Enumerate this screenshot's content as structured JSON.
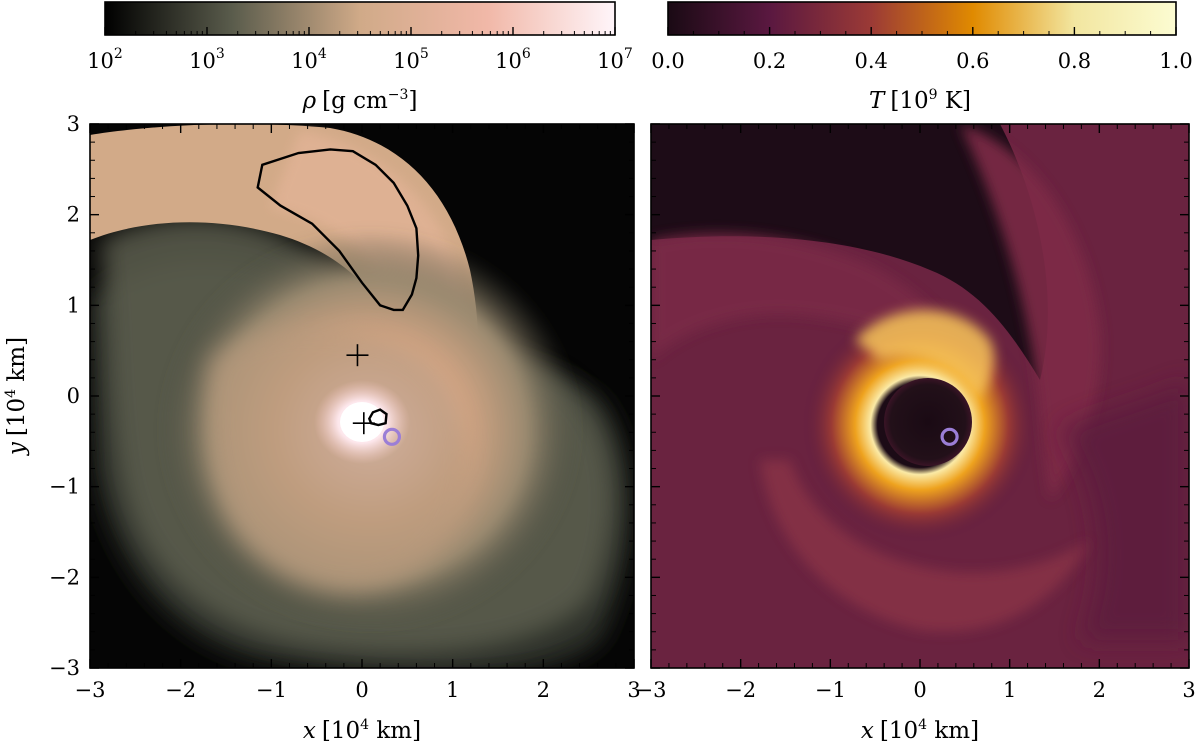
{
  "chart_data": [
    {
      "type": "heatmap",
      "panel": "left",
      "quantity": "density",
      "colorbar": {
        "label": {
          "symbol": "ρ",
          "unit": "[g cm",
          "unit_exp": "−3",
          "unit_close": "]"
        },
        "scale": "log",
        "range": [
          100,
          10000000
        ],
        "tick_labels": [
          {
            "base": "10",
            "exp": "2"
          },
          {
            "base": "10",
            "exp": "3"
          },
          {
            "base": "10",
            "exp": "4"
          },
          {
            "base": "10",
            "exp": "5"
          },
          {
            "base": "10",
            "exp": "6"
          },
          {
            "base": "10",
            "exp": "7"
          }
        ],
        "colors": [
          "#000000",
          "#5a5c4c",
          "#d0aa88",
          "#f1b8a8",
          "#fff5fa"
        ]
      },
      "xlim": [
        -3,
        3
      ],
      "ylim": [
        -3,
        3
      ],
      "x_ticks": [
        "−3",
        "−2",
        "−1",
        "0",
        "1",
        "2",
        "3"
      ],
      "y_ticks": [
        "3",
        "2",
        "1",
        "0",
        "−1",
        "−2",
        "−3"
      ],
      "xlabel": {
        "var": "x",
        "unit": "[10",
        "exp": "4",
        "unit_close": " km]"
      },
      "ylabel": {
        "var": "y",
        "unit": "[10",
        "exp": "4",
        "unit_close": " km]"
      },
      "markers": [
        {
          "type": "plus",
          "x": -0.05,
          "y": 0.45
        },
        {
          "type": "plus",
          "x": 0.02,
          "y": -0.3
        },
        {
          "type": "circle",
          "x": 0.33,
          "y": -0.45,
          "color": "#9b7ed6"
        }
      ],
      "contour_large": [
        [
          -1.15,
          2.3
        ],
        [
          -1.1,
          2.55
        ],
        [
          -0.7,
          2.68
        ],
        [
          -0.35,
          2.72
        ],
        [
          -0.1,
          2.7
        ],
        [
          0.15,
          2.55
        ],
        [
          0.35,
          2.35
        ],
        [
          0.5,
          2.1
        ],
        [
          0.6,
          1.85
        ],
        [
          0.62,
          1.55
        ],
        [
          0.6,
          1.3
        ],
        [
          0.55,
          1.12
        ],
        [
          0.45,
          0.95
        ],
        [
          0.35,
          0.95
        ],
        [
          0.2,
          1.0
        ],
        [
          0.0,
          1.25
        ],
        [
          -0.25,
          1.6
        ],
        [
          -0.55,
          1.9
        ],
        [
          -0.9,
          2.1
        ],
        [
          -1.15,
          2.3
        ]
      ],
      "contour_small": [
        [
          0.08,
          -0.25
        ],
        [
          0.12,
          -0.18
        ],
        [
          0.2,
          -0.15
        ],
        [
          0.27,
          -0.2
        ],
        [
          0.26,
          -0.3
        ],
        [
          0.18,
          -0.32
        ],
        [
          0.1,
          -0.3
        ],
        [
          0.08,
          -0.25
        ]
      ]
    },
    {
      "type": "heatmap",
      "panel": "right",
      "quantity": "temperature",
      "colorbar": {
        "label": {
          "symbol": "T",
          "unit": "[10",
          "unit_exp": "9",
          "unit_close": " K]"
        },
        "scale": "linear",
        "range": [
          0.0,
          1.0
        ],
        "tick_labels": [
          "0.0",
          "0.2",
          "0.4",
          "0.6",
          "0.8",
          "1.0"
        ],
        "colors": [
          "#1a0a14",
          "#5a1840",
          "#9b3a36",
          "#e08a00",
          "#f2e6a0",
          "#fcfcd2"
        ]
      },
      "xlim": [
        -3,
        3
      ],
      "ylim": [
        -3,
        3
      ],
      "x_ticks": [
        "−3",
        "−2",
        "−1",
        "0",
        "1",
        "2",
        "3"
      ],
      "xlabel": {
        "var": "x",
        "unit": "[10",
        "exp": "4",
        "unit_close": " km]"
      },
      "markers": [
        {
          "type": "circle",
          "x": 0.33,
          "y": -0.45,
          "color": "#9b7ed6"
        }
      ]
    }
  ]
}
